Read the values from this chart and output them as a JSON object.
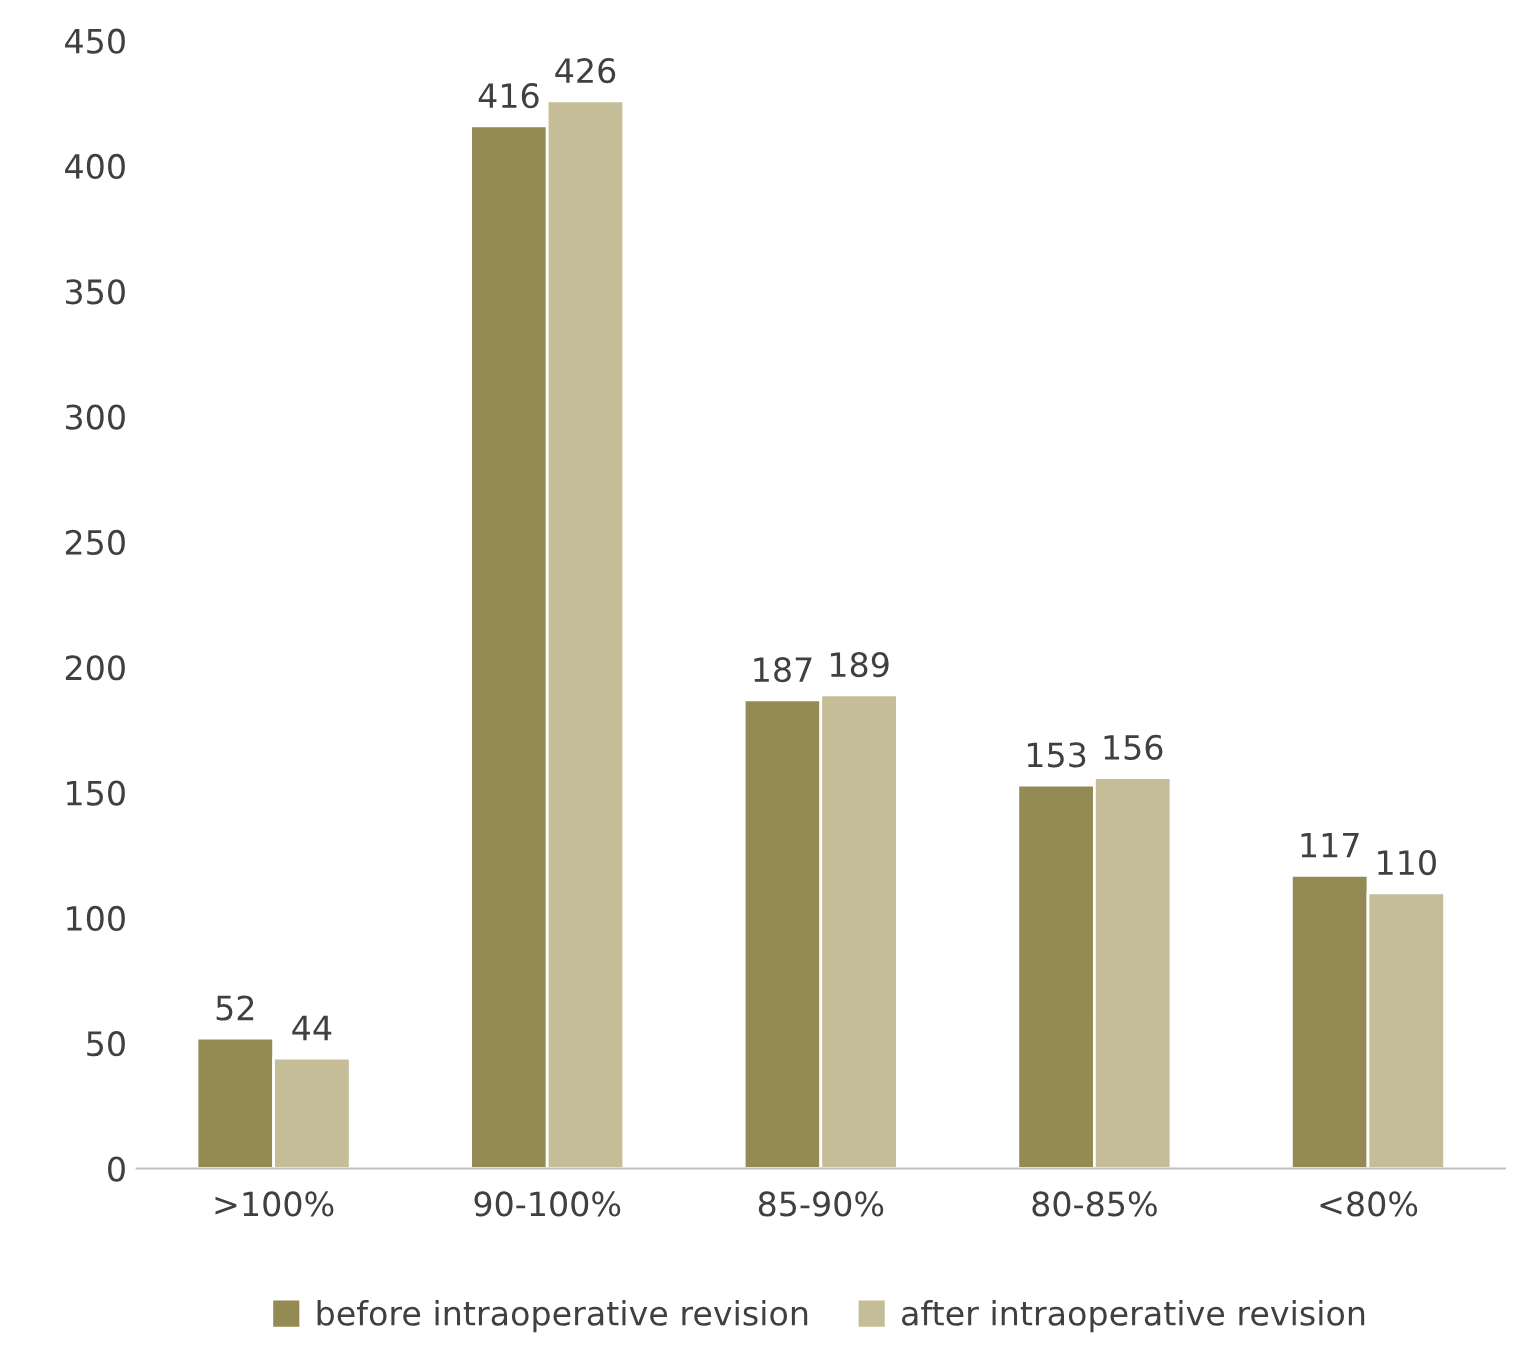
{
  "chart_data": {
    "type": "bar",
    "categories": [
      ">100%",
      "90-100%",
      "85-90%",
      "80-85%",
      "<80%"
    ],
    "series": [
      {
        "name": "before intraoperative revision",
        "color": "#948a54",
        "values": [
          52,
          416,
          187,
          153,
          117
        ]
      },
      {
        "name": "after intraoperative revision",
        "color": "#c4bd97",
        "values": [
          44,
          426,
          189,
          156,
          110
        ]
      }
    ],
    "ylim": [
      0,
      450
    ],
    "yticks": [
      0,
      50,
      100,
      150,
      200,
      250,
      300,
      350,
      400,
      450
    ],
    "data_labels": true,
    "grid": false,
    "legend": "bottom"
  }
}
